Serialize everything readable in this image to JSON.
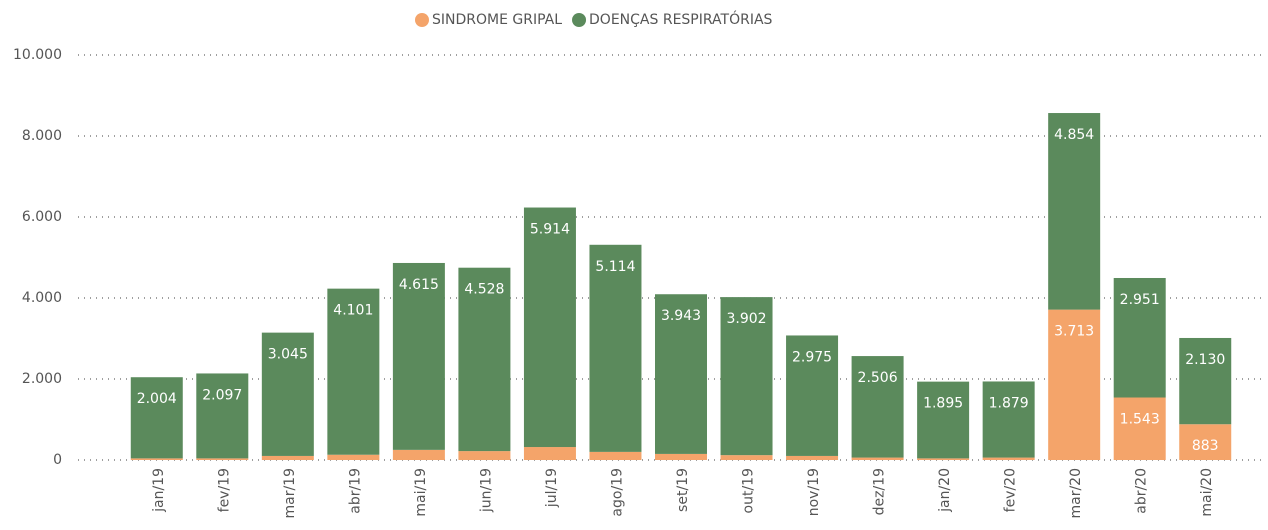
{
  "chart_data": {
    "type": "stacked-bar",
    "categories": [
      "jan/19",
      "fev/19",
      "mar/19",
      "abr/19",
      "mai/19",
      "jun/19",
      "jul/19",
      "ago/19",
      "set/19",
      "out/19",
      "nov/19",
      "dez/19",
      "jan/20",
      "fev/20",
      "mar/20",
      "abr/20",
      "mai/20"
    ],
    "series": [
      {
        "name": "SINDROME GRIPAL",
        "color": "#f4a46a",
        "values": [
          40,
          40,
          100,
          130,
          250,
          220,
          320,
          200,
          150,
          120,
          100,
          60,
          40,
          60,
          3713,
          1543,
          883
        ],
        "value_labels": [
          null,
          null,
          null,
          null,
          null,
          null,
          null,
          null,
          null,
          null,
          null,
          null,
          null,
          null,
          "3.713",
          "1.543",
          "883"
        ]
      },
      {
        "name": "DOENÇAS RESPIRATÓRIAS",
        "color": "#5b8a5c",
        "values": [
          2004,
          2097,
          3045,
          4101,
          4615,
          4528,
          5914,
          5114,
          3943,
          3902,
          2975,
          2506,
          1895,
          1879,
          4854,
          2951,
          2130
        ],
        "value_labels": [
          "2.004",
          "2.097",
          "3.045",
          "4.101",
          "4.615",
          "4.528",
          "5.914",
          "5.114",
          "3.943",
          "3.902",
          "2.975",
          "2.506",
          "1.895",
          "1.879",
          "4.854",
          "2.951",
          "2.130"
        ]
      }
    ],
    "ylim": [
      0,
      10000
    ],
    "yticks": [
      0,
      {
        "value": 2000,
        "label": "2.000"
      },
      {
        "value": 4000,
        "label": "4.000"
      },
      {
        "value": 6000,
        "label": "6.000"
      },
      {
        "value": 8000,
        "label": "8.000"
      },
      {
        "value": 10000,
        "label": "10.000"
      }
    ],
    "grid": true,
    "legend": "top"
  }
}
